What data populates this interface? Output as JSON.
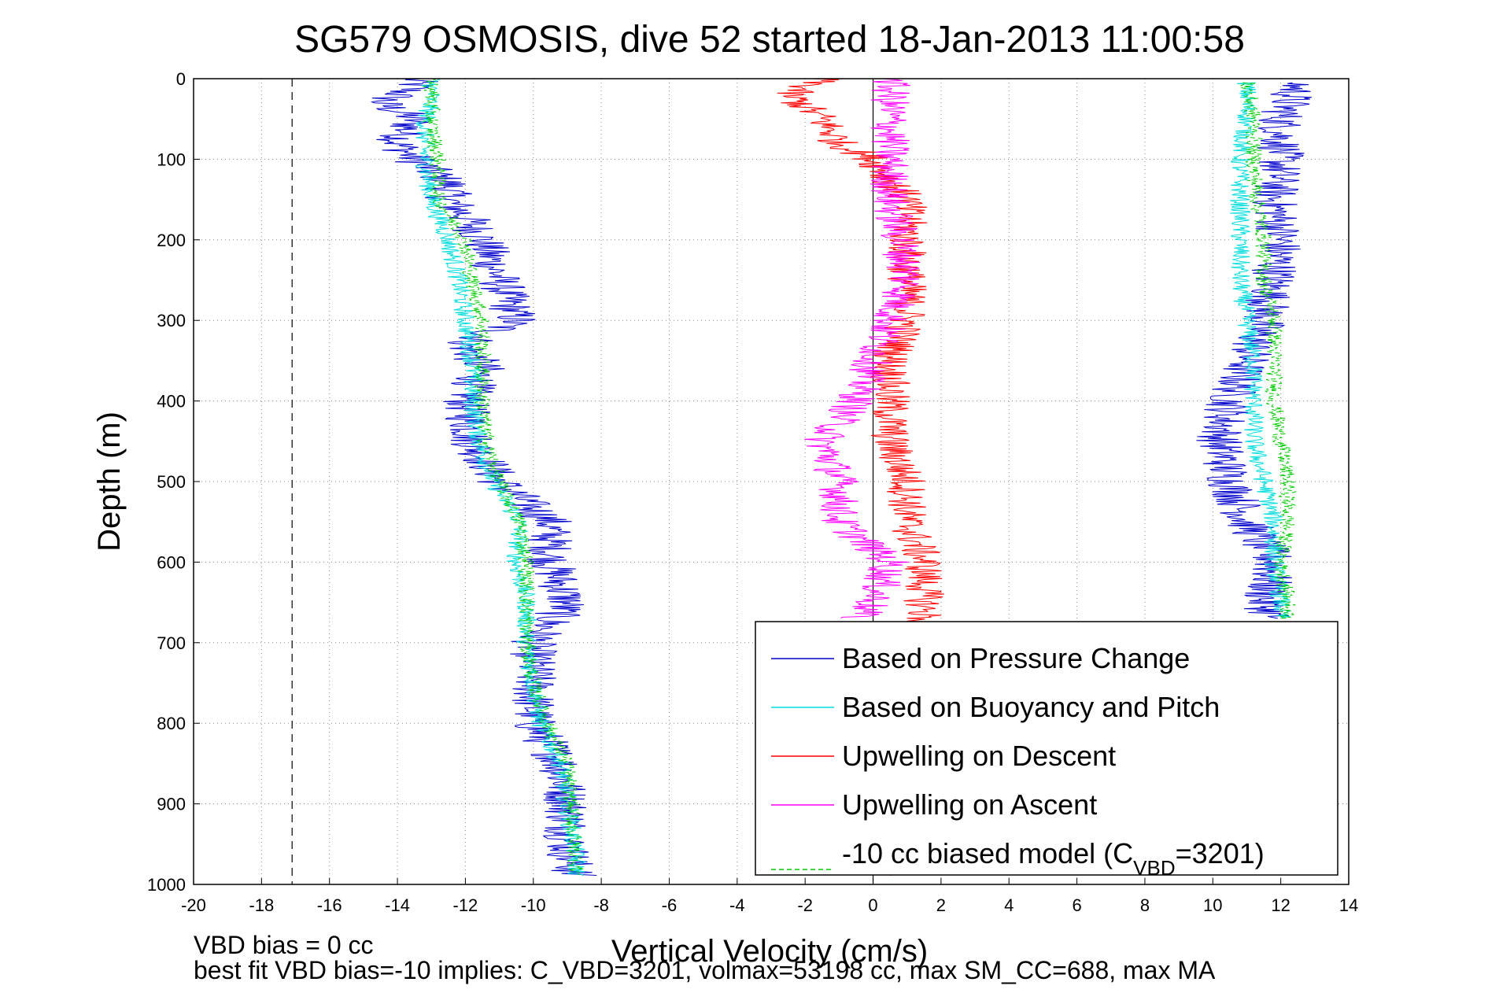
{
  "chart_data": {
    "type": "line",
    "title": "SG579 OSMOSIS, dive 52 started 18-Jan-2013 11:00:58",
    "xlabel": "Vertical Velocity (cm/s)",
    "ylabel": "Depth (m)",
    "xlim": [
      -20,
      14
    ],
    "ylim": [
      0,
      1000
    ],
    "y_reversed": true,
    "grid": true,
    "legend_position": "bottom-right",
    "xticks": [
      "-20",
      "-18",
      "-16",
      "-14",
      "-12",
      "-10",
      "-8",
      "-6",
      "-4",
      "-2",
      "0",
      "2",
      "4",
      "6",
      "8",
      "10",
      "12",
      "14"
    ],
    "yticks": [
      "0",
      "100",
      "200",
      "300",
      "400",
      "500",
      "600",
      "700",
      "800",
      "900",
      "1000"
    ],
    "reference_lines": [
      {
        "axis": "x",
        "value": -17.1,
        "style": "dashed",
        "color": "#000000"
      },
      {
        "axis": "x",
        "value": 0,
        "style": "solid",
        "color": "#000000"
      }
    ],
    "series": [
      {
        "name": "Based on Pressure Change",
        "color": "#0000cc",
        "style": "solid",
        "noise": 0.7,
        "branches": [
          {
            "depth": [
              0,
              10,
              30,
              50,
              80,
              100,
              130,
              150,
              170,
              200,
              250,
              300,
              330,
              360,
              400,
              450,
              500,
              550,
              600,
              650,
              700,
              750,
              800,
              850,
              900,
              950,
              990
            ],
            "velocity": [
              -13.5,
              -13.5,
              -14.5,
              -13.5,
              -14.0,
              -13.5,
              -12.5,
              -12.5,
              -12.0,
              -11.5,
              -11.0,
              -10.5,
              -12.0,
              -11.5,
              -12.0,
              -11.8,
              -11.0,
              -9.5,
              -9.5,
              -9.0,
              -10.0,
              -10.0,
              -10.0,
              -9.2,
              -9.0,
              -9.0,
              -8.8
            ]
          },
          {
            "depth": [
              5,
              50,
              100,
              150,
              200,
              250,
              300,
              350,
              400,
              450,
              500,
              550,
              600,
              650,
              670
            ],
            "velocity": [
              12.5,
              12.0,
              12.0,
              11.8,
              12.0,
              11.8,
              11.5,
              11.0,
              10.5,
              10.2,
              10.5,
              11.0,
              11.8,
              11.5,
              11.8
            ]
          }
        ]
      },
      {
        "name": "Based on Buoyancy and Pitch",
        "color": "#00dddd",
        "style": "solid",
        "noise": 0.3,
        "branches": [
          {
            "depth": [
              0,
              20,
              60,
              100,
              150,
              200,
              250,
              300,
              350,
              400,
              450,
              500,
              550,
              600,
              650,
              700,
              750,
              800,
              850,
              900,
              950,
              990
            ],
            "velocity": [
              -13.0,
              -13.0,
              -13.2,
              -13.2,
              -13.0,
              -12.5,
              -12.2,
              -12.0,
              -11.8,
              -11.8,
              -11.6,
              -11.2,
              -10.4,
              -10.5,
              -10.2,
              -10.2,
              -10.0,
              -9.8,
              -9.2,
              -9.0,
              -8.8,
              -8.7
            ]
          },
          {
            "depth": [
              5,
              50,
              100,
              150,
              200,
              250,
              300,
              350,
              400,
              450,
              500,
              550,
              600,
              650,
              670
            ],
            "velocity": [
              11.0,
              11.0,
              10.8,
              10.8,
              10.8,
              10.8,
              11.0,
              11.2,
              11.2,
              11.2,
              11.5,
              11.8,
              11.8,
              12.0,
              12.0
            ]
          }
        ]
      },
      {
        "name": "Upwelling on Descent",
        "color": "#ff0000",
        "style": "solid",
        "noise": 0.6,
        "branches": [
          {
            "depth": [
              0,
              20,
              50,
              80,
              100,
              150,
              200,
              250,
              300,
              350,
              400,
              450,
              500,
              550,
              600,
              650,
              700,
              750,
              800,
              850,
              900,
              950,
              990
            ],
            "velocity": [
              -1.5,
              -2.5,
              -1.5,
              -1.0,
              0.0,
              1.0,
              1.0,
              1.0,
              1.0,
              0.5,
              0.5,
              0.5,
              1.0,
              1.0,
              1.5,
              1.5,
              1.5,
              1.0,
              1.0,
              1.0,
              1.0,
              1.0,
              1.0
            ]
          }
        ]
      },
      {
        "name": "Upwelling on Ascent",
        "color": "#ff00ff",
        "style": "solid",
        "noise": 0.6,
        "branches": [
          {
            "depth": [
              0,
              50,
              100,
              150,
              200,
              250,
              300,
              350,
              400,
              450,
              500,
              550,
              600,
              650,
              670
            ],
            "velocity": [
              0.5,
              0.5,
              0.5,
              0.5,
              0.8,
              1.0,
              0.5,
              0.0,
              -0.5,
              -1.5,
              -1.0,
              -1.0,
              0.5,
              0.0,
              -0.5
            ]
          }
        ]
      },
      {
        "name": "-10 cc biased model (CVBD=3201)",
        "color": "#00cc00",
        "style": "dashed",
        "noise": 0.25,
        "branches": [
          {
            "depth": [
              0,
              20,
              60,
              100,
              150,
              200,
              250,
              300,
              350,
              400,
              450,
              500,
              550,
              600,
              650,
              700,
              750,
              800,
              850,
              900,
              950,
              990
            ],
            "velocity": [
              -13.0,
              -13.0,
              -13.0,
              -12.8,
              -12.8,
              -12.0,
              -11.8,
              -11.5,
              -11.5,
              -11.5,
              -11.4,
              -11.0,
              -10.4,
              -10.2,
              -10.2,
              -10.2,
              -10.0,
              -9.6,
              -9.0,
              -8.9,
              -8.8,
              -8.7
            ]
          },
          {
            "depth": [
              5,
              50,
              100,
              150,
              200,
              250,
              300,
              350,
              400,
              450,
              500,
              550,
              600,
              650,
              670
            ],
            "velocity": [
              11.0,
              11.2,
              11.2,
              11.3,
              11.5,
              11.5,
              11.8,
              11.8,
              11.8,
              12.0,
              12.2,
              12.2,
              12.0,
              12.2,
              12.2
            ]
          }
        ]
      }
    ],
    "legend": [
      {
        "label": "Based on Pressure Change",
        "color": "#0000cc",
        "style": "solid"
      },
      {
        "label": "Based on Buoyancy and Pitch",
        "color": "#00dddd",
        "style": "solid"
      },
      {
        "label": "Upwelling on Descent",
        "color": "#ff0000",
        "style": "solid"
      },
      {
        "label": "Upwelling on Ascent",
        "color": "#ff00ff",
        "style": "solid"
      },
      {
        "label_prefix": "-10 cc biased model (C",
        "label_sub": "VBD",
        "label_suffix": "=3201)",
        "color": "#00cc00",
        "style": "dashed"
      }
    ],
    "footer_lines": [
      "VBD bias = 0 cc",
      "best fit VBD bias=-10 implies: C_VBD=3201, volmax=53198 cc, max SM_CC=688, max MA"
    ]
  }
}
